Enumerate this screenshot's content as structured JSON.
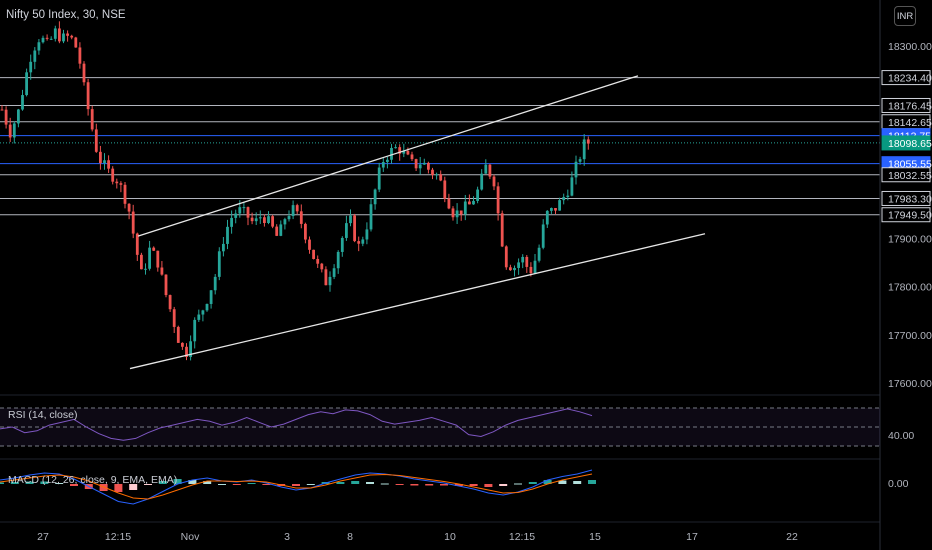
{
  "header": {
    "title": "Nifty 50 Index, 30, NSE",
    "currency": "INR"
  },
  "panels": {
    "rsi": {
      "label": "RSI (14, close)",
      "axis_value": "40.00"
    },
    "macd": {
      "label": "MACD (12, 26, close, 9, EMA, EMA)",
      "axis_value": "0.00"
    }
  },
  "colors": {
    "up": "#26a69a",
    "down": "#ef5350",
    "rsi_line": "#7e57c2",
    "macd_line": "#2962ff",
    "signal_line": "#ff6d00",
    "level_blue": "#2962ff",
    "level_white": "#b2b5be"
  },
  "chart_data": {
    "type": "candlestick",
    "instrument": "Nifty 50 Index",
    "interval": "30",
    "exchange": "NSE",
    "x_tick_labels": [
      "27",
      "12:15",
      "Nov",
      "3",
      "8",
      "10",
      "12:15",
      "15",
      "17",
      "22"
    ],
    "y_tick_labels": [
      "18300.00",
      "17900.00",
      "17800.00",
      "17700.00",
      "17600.00"
    ],
    "ylim": [
      17550,
      18380
    ],
    "price_labels": [
      {
        "text": "18234.40",
        "value": 18234.4,
        "style": "level"
      },
      {
        "text": "18176.45",
        "value": 18176.45,
        "style": "level"
      },
      {
        "text": "18142.65",
        "value": 18142.65,
        "style": "level"
      },
      {
        "text": "18113.75",
        "value": 18113.75,
        "style": "blue"
      },
      {
        "text": "18098.65",
        "value": 18098.65,
        "style": "last"
      },
      {
        "text": "18055.55",
        "value": 18055.55,
        "style": "blue"
      },
      {
        "text": "18032.55",
        "value": 18032.55,
        "style": "level"
      },
      {
        "text": "17983.30",
        "value": 17983.3,
        "style": "level"
      },
      {
        "text": "17949.50",
        "value": 17949.5,
        "style": "level"
      }
    ],
    "close_path": [
      {
        "x": 0,
        "v": 18180
      },
      {
        "x": 10,
        "v": 18120
      },
      {
        "x": 18,
        "v": 18160
      },
      {
        "x": 25,
        "v": 18230
      },
      {
        "x": 32,
        "v": 18290
      },
      {
        "x": 40,
        "v": 18320
      },
      {
        "x": 48,
        "v": 18300
      },
      {
        "x": 55,
        "v": 18330
      },
      {
        "x": 62,
        "v": 18315
      },
      {
        "x": 70,
        "v": 18320
      },
      {
        "x": 78,
        "v": 18290
      },
      {
        "x": 85,
        "v": 18200
      },
      {
        "x": 92,
        "v": 18130
      },
      {
        "x": 98,
        "v": 18070
      },
      {
        "x": 108,
        "v": 18040
      },
      {
        "x": 118,
        "v": 18020
      },
      {
        "x": 128,
        "v": 17970
      },
      {
        "x": 136,
        "v": 17880
      },
      {
        "x": 142,
        "v": 17820
      },
      {
        "x": 150,
        "v": 17880
      },
      {
        "x": 158,
        "v": 17850
      },
      {
        "x": 165,
        "v": 17790
      },
      {
        "x": 172,
        "v": 17740
      },
      {
        "x": 180,
        "v": 17680
      },
      {
        "x": 186,
        "v": 17660
      },
      {
        "x": 193,
        "v": 17720
      },
      {
        "x": 200,
        "v": 17740
      },
      {
        "x": 208,
        "v": 17780
      },
      {
        "x": 215,
        "v": 17820
      },
      {
        "x": 222,
        "v": 17890
      },
      {
        "x": 230,
        "v": 17940
      },
      {
        "x": 238,
        "v": 17960
      },
      {
        "x": 246,
        "v": 17950
      },
      {
        "x": 254,
        "v": 17930
      },
      {
        "x": 262,
        "v": 17950
      },
      {
        "x": 270,
        "v": 17930
      },
      {
        "x": 278,
        "v": 17900
      },
      {
        "x": 286,
        "v": 17950
      },
      {
        "x": 294,
        "v": 17960
      },
      {
        "x": 302,
        "v": 17930
      },
      {
        "x": 310,
        "v": 17880
      },
      {
        "x": 318,
        "v": 17840
      },
      {
        "x": 326,
        "v": 17810
      },
      {
        "x": 334,
        "v": 17850
      },
      {
        "x": 342,
        "v": 17900
      },
      {
        "x": 350,
        "v": 17940
      },
      {
        "x": 358,
        "v": 17880
      },
      {
        "x": 366,
        "v": 17920
      },
      {
        "x": 374,
        "v": 17990
      },
      {
        "x": 382,
        "v": 18060
      },
      {
        "x": 390,
        "v": 18080
      },
      {
        "x": 398,
        "v": 18090
      },
      {
        "x": 406,
        "v": 18070
      },
      {
        "x": 414,
        "v": 18050
      },
      {
        "x": 422,
        "v": 18060
      },
      {
        "x": 430,
        "v": 18040
      },
      {
        "x": 438,
        "v": 18030
      },
      {
        "x": 446,
        "v": 17990
      },
      {
        "x": 454,
        "v": 17950
      },
      {
        "x": 462,
        "v": 17960
      },
      {
        "x": 470,
        "v": 17970
      },
      {
        "x": 478,
        "v": 18000
      },
      {
        "x": 486,
        "v": 18050
      },
      {
        "x": 494,
        "v": 18020
      },
      {
        "x": 500,
        "v": 17920
      },
      {
        "x": 506,
        "v": 17850
      },
      {
        "x": 514,
        "v": 17840
      },
      {
        "x": 522,
        "v": 17860
      },
      {
        "x": 530,
        "v": 17830
      },
      {
        "x": 538,
        "v": 17870
      },
      {
        "x": 546,
        "v": 17950
      },
      {
        "x": 554,
        "v": 17960
      },
      {
        "x": 562,
        "v": 17980
      },
      {
        "x": 570,
        "v": 18010
      },
      {
        "x": 578,
        "v": 18060
      },
      {
        "x": 585,
        "v": 18100
      },
      {
        "x": 592,
        "v": 18099
      }
    ],
    "trendlines": [
      {
        "name": "channel-upper",
        "points": [
          {
            "x": 138,
            "v": 17905
          },
          {
            "x": 638,
            "v": 18238
          }
        ]
      },
      {
        "name": "channel-lower",
        "points": [
          {
            "x": 130,
            "v": 17630
          },
          {
            "x": 705,
            "v": 17910
          }
        ]
      }
    ],
    "horizontal_levels": [
      {
        "value": 18234.4,
        "color": "#b2b5be"
      },
      {
        "value": 18176.45,
        "color": "#b2b5be"
      },
      {
        "value": 18142.65,
        "color": "#b2b5be"
      },
      {
        "value": 18113.75,
        "color": "#2962ff"
      },
      {
        "value": 18055.55,
        "color": "#2962ff"
      },
      {
        "value": 18032.55,
        "color": "#b2b5be"
      },
      {
        "value": 17983.3,
        "color": "#b2b5be"
      },
      {
        "value": 17949.5,
        "color": "#b2b5be"
      }
    ],
    "rsi": {
      "value_label": "40.00",
      "values": [
        48,
        50,
        44,
        46,
        52,
        55,
        58,
        50,
        43,
        38,
        36,
        38,
        44,
        49,
        52,
        55,
        58,
        56,
        52,
        55,
        60,
        55,
        50,
        53,
        58,
        63,
        66,
        64,
        68,
        67,
        63,
        56,
        53,
        55,
        57,
        60,
        56,
        52,
        42,
        40,
        45,
        52,
        57,
        60,
        63,
        66,
        69,
        66,
        62
      ]
    },
    "macd": {
      "value_label": "0.00",
      "macd": [
        8,
        12,
        18,
        22,
        20,
        10,
        -5,
        -20,
        -35,
        -40,
        -30,
        -15,
        0,
        8,
        12,
        6,
        4,
        8,
        2,
        -6,
        -12,
        -8,
        2,
        10,
        18,
        22,
        20,
        16,
        10,
        6,
        2,
        -4,
        -10,
        -18,
        -22,
        -16,
        -6,
        8,
        15,
        20,
        28
      ],
      "signal": [
        4,
        8,
        12,
        16,
        18,
        14,
        6,
        -6,
        -18,
        -28,
        -30,
        -22,
        -12,
        -2,
        6,
        6,
        5,
        6,
        4,
        -2,
        -8,
        -8,
        -2,
        6,
        12,
        18,
        19,
        17,
        13,
        9,
        5,
        0,
        -6,
        -12,
        -18,
        -17,
        -10,
        0,
        8,
        14,
        20
      ],
      "histogram": [
        3,
        4,
        5,
        5,
        2,
        -4,
        -10,
        -14,
        -16,
        -12,
        -2,
        6,
        10,
        8,
        6,
        0,
        -1,
        2,
        -2,
        -4,
        -4,
        0,
        4,
        4,
        6,
        4,
        1,
        -1,
        -3,
        -3,
        -3,
        -4,
        -4,
        -6,
        -4,
        1,
        4,
        8,
        7,
        6,
        8
      ]
    }
  }
}
